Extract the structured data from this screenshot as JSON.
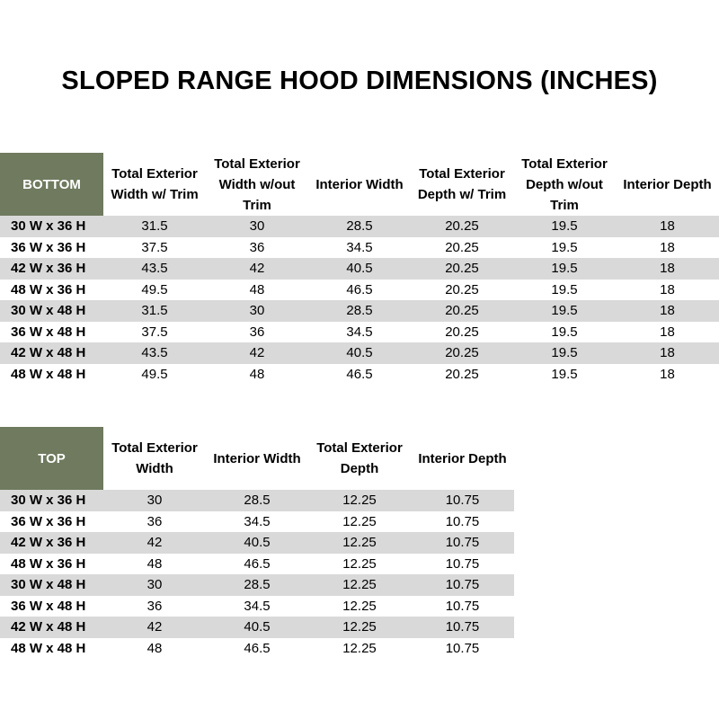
{
  "title": "SLOPED RANGE HOOD DIMENSIONS (INCHES)",
  "colors": {
    "header_bg": "#6f7a5f",
    "stripe": "#d9d9d9"
  },
  "bottom": {
    "corner": "BOTTOM",
    "headers": [
      "Total Exterior Width w/ Trim",
      "Total Exterior Width w/out Trim",
      "Interior Width",
      "Total Exterior Depth w/ Trim",
      "Total Exterior Depth w/out Trim",
      "Interior Depth"
    ],
    "rows": [
      [
        "30 W x 36 H",
        "31.5",
        "30",
        "28.5",
        "20.25",
        "19.5",
        "18"
      ],
      [
        "36 W x 36 H",
        "37.5",
        "36",
        "34.5",
        "20.25",
        "19.5",
        "18"
      ],
      [
        "42 W x 36 H",
        "43.5",
        "42",
        "40.5",
        "20.25",
        "19.5",
        "18"
      ],
      [
        "48 W x 36 H",
        "49.5",
        "48",
        "46.5",
        "20.25",
        "19.5",
        "18"
      ],
      [
        "30 W x 48 H",
        "31.5",
        "30",
        "28.5",
        "20.25",
        "19.5",
        "18"
      ],
      [
        "36 W x 48 H",
        "37.5",
        "36",
        "34.5",
        "20.25",
        "19.5",
        "18"
      ],
      [
        "42 W x 48 H",
        "43.5",
        "42",
        "40.5",
        "20.25",
        "19.5",
        "18"
      ],
      [
        "48 W x 48 H",
        "49.5",
        "48",
        "46.5",
        "20.25",
        "19.5",
        "18"
      ]
    ]
  },
  "top": {
    "corner": "TOP",
    "headers": [
      "Total Exterior Width",
      "Interior Width",
      "Total Exterior Depth",
      "Interior Depth"
    ],
    "rows": [
      [
        "30 W x 36 H",
        "30",
        "28.5",
        "12.25",
        "10.75"
      ],
      [
        "36 W x 36 H",
        "36",
        "34.5",
        "12.25",
        "10.75"
      ],
      [
        "42 W x 36 H",
        "42",
        "40.5",
        "12.25",
        "10.75"
      ],
      [
        "48 W x 36 H",
        "48",
        "46.5",
        "12.25",
        "10.75"
      ],
      [
        "30 W x 48 H",
        "30",
        "28.5",
        "12.25",
        "10.75"
      ],
      [
        "36 W x 48 H",
        "36",
        "34.5",
        "12.25",
        "10.75"
      ],
      [
        "42 W x 48 H",
        "42",
        "40.5",
        "12.25",
        "10.75"
      ],
      [
        "48 W x 48 H",
        "48",
        "46.5",
        "12.25",
        "10.75"
      ]
    ]
  }
}
